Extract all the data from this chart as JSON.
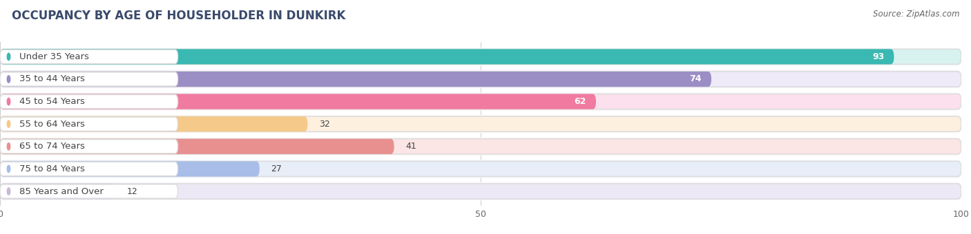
{
  "title": "OCCUPANCY BY AGE OF HOUSEHOLDER IN DUNKIRK",
  "source": "Source: ZipAtlas.com",
  "categories": [
    "Under 35 Years",
    "35 to 44 Years",
    "45 to 54 Years",
    "55 to 64 Years",
    "65 to 74 Years",
    "75 to 84 Years",
    "85 Years and Over"
  ],
  "values": [
    93,
    74,
    62,
    32,
    41,
    27,
    12
  ],
  "bar_colors": [
    "#3ab8b2",
    "#9b8ec4",
    "#f07aa0",
    "#f5c98a",
    "#e89090",
    "#a8bde8",
    "#c9b8d8"
  ],
  "bar_bg_colors": [
    "#d8f2f0",
    "#eeeaf8",
    "#fde0ed",
    "#fdf0df",
    "#fce5e5",
    "#e8eef8",
    "#ede8f5"
  ],
  "label_pill_colors": [
    "#3ab8b2",
    "#9b8ec4",
    "#f07aa0",
    "#f5c98a",
    "#e89090",
    "#a8bde8",
    "#c9b8d8"
  ],
  "xlim": [
    0,
    100
  ],
  "xticks": [
    0,
    50,
    100
  ],
  "title_fontsize": 12,
  "label_fontsize": 9.5,
  "value_fontsize": 9,
  "bg_color": "#ffffff",
  "bar_height": 0.68,
  "row_bg_colors": [
    "#f5fffe",
    "#f5f3fd",
    "#fdf5f9",
    "#fefaf4",
    "#fdf5f5",
    "#f4f7fd",
    "#f8f5fd"
  ]
}
